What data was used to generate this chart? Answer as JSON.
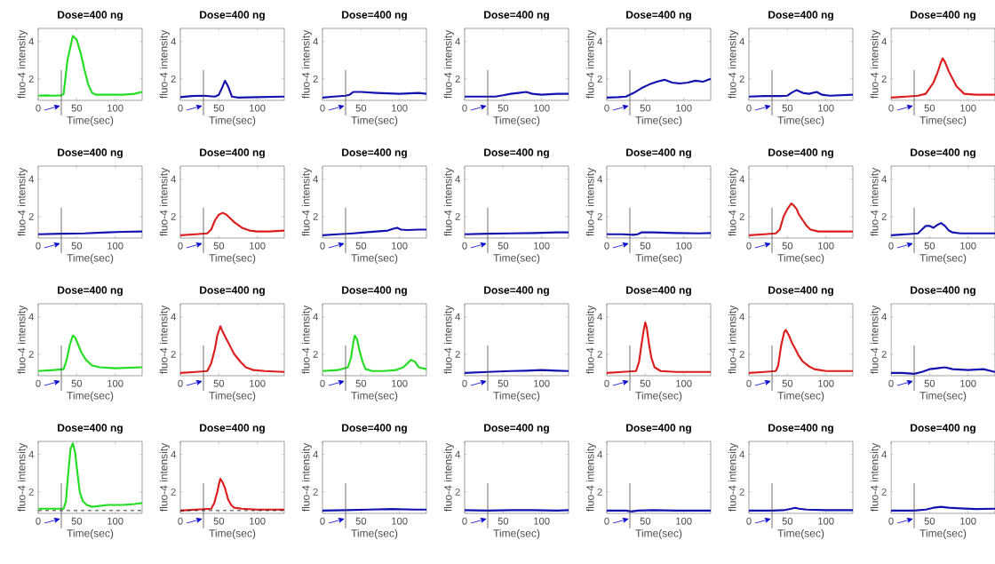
{
  "chart_data": [
    {
      "type": "line",
      "title": "Dose=400 ng",
      "xlabel": "Time(sec)",
      "ylabel": "fluo-4 intensity",
      "xlim": [
        0,
        135
      ],
      "ylim": [
        0.85,
        4.7
      ],
      "xticks": [
        0,
        50,
        100
      ],
      "yticks": [
        2,
        4
      ],
      "ref_lines": [
        {
          "axis": "x",
          "value": 30
        }
      ],
      "x": [
        0,
        10,
        20,
        30,
        33,
        38,
        45,
        50,
        55,
        60,
        65,
        70,
        75,
        90,
        110,
        125,
        135
      ],
      "series": [
        {
          "color": "#22dd22",
          "values": [
            1.1,
            1.12,
            1.1,
            1.12,
            1.2,
            3.0,
            4.3,
            4.1,
            3.4,
            2.5,
            1.7,
            1.25,
            1.15,
            1.15,
            1.15,
            1.2,
            1.3
          ]
        }
      ]
    },
    {
      "type": "line",
      "title": "Dose=400 ng",
      "xlabel": "Time(sec)",
      "ylabel": "fluo-4 intensity",
      "xlim": [
        0,
        135
      ],
      "ylim": [
        0.85,
        4.7
      ],
      "xticks": [
        0,
        50,
        100
      ],
      "yticks": [
        2,
        4
      ],
      "ref_lines": [
        {
          "axis": "x",
          "value": 30
        }
      ],
      "x": [
        0,
        15,
        30,
        45,
        50,
        55,
        58,
        62,
        67,
        75,
        100,
        135
      ],
      "series": [
        {
          "color": "#1212b0",
          "values": [
            1.02,
            1.08,
            1.1,
            1.05,
            1.15,
            1.6,
            1.9,
            1.6,
            1.05,
            1.0,
            1.02,
            1.05
          ]
        }
      ]
    },
    {
      "type": "line",
      "title": "Dose=400 ng",
      "xlabel": "Time(sec)",
      "ylabel": "fluo-4 intensity",
      "xlim": [
        0,
        135
      ],
      "ylim": [
        0.85,
        4.7
      ],
      "xticks": [
        0,
        50,
        100
      ],
      "yticks": [
        2,
        4
      ],
      "ref_lines": [
        {
          "axis": "x",
          "value": 30
        }
      ],
      "x": [
        0,
        15,
        30,
        35,
        40,
        50,
        70,
        100,
        125,
        135
      ],
      "series": [
        {
          "color": "#1212b0",
          "values": [
            1.0,
            1.05,
            1.1,
            1.15,
            1.3,
            1.3,
            1.25,
            1.2,
            1.25,
            1.2
          ]
        }
      ]
    },
    {
      "type": "line",
      "title": "Dose=400 ng",
      "xlabel": "Time(sec)",
      "ylabel": "fluo-4 intensity",
      "xlim": [
        0,
        135
      ],
      "ylim": [
        0.85,
        4.7
      ],
      "xticks": [
        0,
        50,
        100
      ],
      "yticks": [
        2,
        4
      ],
      "ref_lines": [
        {
          "axis": "x",
          "value": 30
        }
      ],
      "x": [
        0,
        20,
        40,
        50,
        60,
        70,
        80,
        88,
        100,
        120,
        135
      ],
      "series": [
        {
          "color": "#1212b0",
          "values": [
            1.05,
            1.05,
            1.05,
            1.12,
            1.2,
            1.25,
            1.3,
            1.2,
            1.15,
            1.2,
            1.2
          ]
        }
      ]
    },
    {
      "type": "line",
      "title": "Dose=400 ng",
      "xlabel": "Time(sec)",
      "ylabel": "fluo-4 intensity",
      "xlim": [
        0,
        135
      ],
      "ylim": [
        0.85,
        4.7
      ],
      "xticks": [
        0,
        50,
        100
      ],
      "yticks": [
        2,
        4
      ],
      "ref_lines": [
        {
          "axis": "x",
          "value": 30
        }
      ],
      "x": [
        0,
        15,
        25,
        35,
        45,
        55,
        65,
        75,
        85,
        95,
        105,
        115,
        125,
        135
      ],
      "series": [
        {
          "color": "#1212b0",
          "values": [
            1.0,
            1.02,
            1.05,
            1.25,
            1.5,
            1.7,
            1.85,
            1.95,
            1.8,
            1.75,
            1.8,
            1.9,
            1.85,
            2.0
          ]
        }
      ]
    },
    {
      "type": "line",
      "title": "Dose=400 ng",
      "xlabel": "Time(sec)",
      "ylabel": "fluo-4 intensity",
      "xlim": [
        0,
        135
      ],
      "ylim": [
        0.85,
        4.7
      ],
      "xticks": [
        0,
        50,
        100
      ],
      "yticks": [
        2,
        4
      ],
      "ref_lines": [
        {
          "axis": "x",
          "value": 30
        }
      ],
      "x": [
        0,
        20,
        40,
        50,
        55,
        62,
        70,
        78,
        88,
        95,
        105,
        135
      ],
      "series": [
        {
          "color": "#1212b0",
          "values": [
            1.05,
            1.08,
            1.08,
            1.1,
            1.25,
            1.4,
            1.25,
            1.2,
            1.3,
            1.15,
            1.1,
            1.15
          ]
        }
      ]
    },
    {
      "type": "line",
      "title": "Dose=400 ng",
      "xlabel": "Time(sec)",
      "ylabel": "fluo-4 intensity",
      "xlim": [
        0,
        135
      ],
      "ylim": [
        0.85,
        4.7
      ],
      "xticks": [
        0,
        50,
        100
      ],
      "yticks": [
        2,
        4
      ],
      "ref_lines": [
        {
          "axis": "x",
          "value": 30
        }
      ],
      "x": [
        0,
        20,
        35,
        45,
        50,
        55,
        60,
        64,
        67,
        70,
        75,
        80,
        85,
        95,
        110,
        135
      ],
      "series": [
        {
          "color": "#dd1c1c",
          "values": [
            1.0,
            1.05,
            1.1,
            1.2,
            1.5,
            1.8,
            2.3,
            2.8,
            3.1,
            2.9,
            2.4,
            2.0,
            1.6,
            1.2,
            1.15,
            1.15
          ]
        }
      ]
    },
    {
      "type": "line",
      "title": "Dose=400 ng",
      "xlabel": "Time(sec)",
      "ylabel": "fluo-4 intensity",
      "xlim": [
        0,
        135
      ],
      "ylim": [
        0.85,
        4.7
      ],
      "xticks": [
        0,
        50,
        100
      ],
      "yticks": [
        2,
        4
      ],
      "ref_lines": [
        {
          "axis": "x",
          "value": 30
        }
      ],
      "x": [
        0,
        30,
        60,
        90,
        110,
        135
      ],
      "series": [
        {
          "color": "#1212b0",
          "values": [
            1.05,
            1.08,
            1.1,
            1.15,
            1.18,
            1.2
          ]
        }
      ]
    },
    {
      "type": "line",
      "title": "Dose=400 ng",
      "xlabel": "Time(sec)",
      "ylabel": "fluo-4 intensity",
      "xlim": [
        0,
        135
      ],
      "ylim": [
        0.85,
        4.7
      ],
      "xticks": [
        0,
        50,
        100
      ],
      "yticks": [
        2,
        4
      ],
      "ref_lines": [
        {
          "axis": "x",
          "value": 30
        }
      ],
      "x": [
        0,
        20,
        35,
        40,
        45,
        50,
        55,
        60,
        65,
        70,
        80,
        90,
        100,
        115,
        135
      ],
      "series": [
        {
          "color": "#dd1c1c",
          "values": [
            1.0,
            1.05,
            1.1,
            1.3,
            1.8,
            2.1,
            2.2,
            2.1,
            1.9,
            1.7,
            1.4,
            1.25,
            1.2,
            1.2,
            1.25
          ]
        }
      ]
    },
    {
      "type": "line",
      "title": "Dose=400 ng",
      "xlabel": "Time(sec)",
      "ylabel": "fluo-4 intensity",
      "xlim": [
        0,
        135
      ],
      "ylim": [
        0.85,
        4.7
      ],
      "xticks": [
        0,
        50,
        100
      ],
      "yticks": [
        2,
        4
      ],
      "ref_lines": [
        {
          "axis": "x",
          "value": 30
        }
      ],
      "x": [
        0,
        20,
        40,
        55,
        70,
        85,
        92,
        97,
        102,
        110,
        125,
        135
      ],
      "series": [
        {
          "color": "#1212b0",
          "values": [
            1.0,
            1.05,
            1.1,
            1.15,
            1.2,
            1.25,
            1.35,
            1.4,
            1.3,
            1.28,
            1.3,
            1.3
          ]
        }
      ]
    },
    {
      "type": "line",
      "title": "Dose=400 ng",
      "xlabel": "Time(sec)",
      "ylabel": "fluo-4 intensity",
      "xlim": [
        0,
        135
      ],
      "ylim": [
        0.85,
        4.7
      ],
      "xticks": [
        0,
        50,
        100
      ],
      "yticks": [
        2,
        4
      ],
      "ref_lines": [
        {
          "axis": "x",
          "value": 30
        }
      ],
      "x": [
        0,
        30,
        60,
        90,
        120,
        135
      ],
      "series": [
        {
          "color": "#1212b0",
          "values": [
            1.05,
            1.08,
            1.1,
            1.12,
            1.15,
            1.15
          ]
        }
      ]
    },
    {
      "type": "line",
      "title": "Dose=400 ng",
      "xlabel": "Time(sec)",
      "ylabel": "fluo-4 intensity",
      "xlim": [
        0,
        135
      ],
      "ylim": [
        0.85,
        4.7
      ],
      "xticks": [
        0,
        50,
        100
      ],
      "yticks": [
        2,
        4
      ],
      "ref_lines": [
        {
          "axis": "x",
          "value": 30
        }
      ],
      "x": [
        0,
        20,
        35,
        40,
        45,
        60,
        90,
        120,
        135
      ],
      "series": [
        {
          "color": "#1212b0",
          "values": [
            1.05,
            1.05,
            1.02,
            1.05,
            1.15,
            1.15,
            1.12,
            1.1,
            1.12
          ]
        }
      ]
    },
    {
      "type": "line",
      "title": "Dose=400 ng",
      "xlabel": "Time(sec)",
      "ylabel": "fluo-4 intensity",
      "xlim": [
        0,
        135
      ],
      "ylim": [
        0.85,
        4.7
      ],
      "xticks": [
        0,
        50,
        100
      ],
      "yticks": [
        2,
        4
      ],
      "ref_lines": [
        {
          "axis": "x",
          "value": 30
        }
      ],
      "x": [
        0,
        20,
        35,
        40,
        45,
        50,
        55,
        58,
        62,
        65,
        70,
        75,
        80,
        90,
        110,
        135
      ],
      "series": [
        {
          "color": "#dd1c1c",
          "values": [
            1.0,
            1.05,
            1.1,
            1.3,
            2.0,
            2.4,
            2.7,
            2.6,
            2.4,
            2.1,
            1.8,
            1.5,
            1.3,
            1.2,
            1.2,
            1.2
          ]
        }
      ]
    },
    {
      "type": "line",
      "title": "Dose=400 ng",
      "xlabel": "Time(sec)",
      "ylabel": "fluo-4 intensity",
      "xlim": [
        0,
        135
      ],
      "ylim": [
        0.85,
        4.7
      ],
      "xticks": [
        0,
        50,
        100
      ],
      "yticks": [
        2,
        4
      ],
      "ref_lines": [
        {
          "axis": "x",
          "value": 30
        }
      ],
      "x": [
        0,
        20,
        35,
        40,
        45,
        50,
        55,
        60,
        65,
        70,
        75,
        80,
        90,
        110,
        135
      ],
      "series": [
        {
          "color": "#1212b0",
          "values": [
            1.0,
            1.05,
            1.1,
            1.3,
            1.5,
            1.5,
            1.4,
            1.55,
            1.65,
            1.5,
            1.25,
            1.15,
            1.1,
            1.1,
            1.1
          ]
        }
      ]
    },
    {
      "type": "line",
      "title": "Dose=400 ng",
      "xlabel": "Time(sec)",
      "ylabel": "fluo-4 intensity",
      "xlim": [
        0,
        135
      ],
      "ylim": [
        0.85,
        4.7
      ],
      "xticks": [
        0,
        50,
        100
      ],
      "yticks": [
        2,
        4
      ],
      "ref_lines": [
        {
          "axis": "x",
          "value": 30
        }
      ],
      "x": [
        0,
        20,
        33,
        37,
        41,
        45,
        48,
        52,
        56,
        62,
        70,
        80,
        100,
        135
      ],
      "series": [
        {
          "color": "#22dd22",
          "values": [
            1.1,
            1.15,
            1.2,
            1.7,
            2.5,
            3.0,
            2.9,
            2.5,
            2.1,
            1.7,
            1.4,
            1.3,
            1.25,
            1.3
          ]
        }
      ]
    },
    {
      "type": "line",
      "title": "Dose=400 ng",
      "xlabel": "Time(sec)",
      "ylabel": "fluo-4 intensity",
      "xlim": [
        0,
        135
      ],
      "ylim": [
        0.85,
        4.7
      ],
      "xticks": [
        0,
        50,
        100
      ],
      "yticks": [
        2,
        4
      ],
      "ref_lines": [
        {
          "axis": "x",
          "value": 30
        }
      ],
      "x": [
        0,
        20,
        35,
        40,
        45,
        48,
        52,
        55,
        60,
        65,
        70,
        78,
        85,
        95,
        110,
        135
      ],
      "series": [
        {
          "color": "#dd1c1c",
          "values": [
            1.0,
            1.05,
            1.1,
            1.5,
            2.3,
            3.0,
            3.5,
            3.2,
            2.8,
            2.4,
            2.0,
            1.6,
            1.3,
            1.15,
            1.1,
            1.05
          ]
        }
      ]
    },
    {
      "type": "line",
      "title": "Dose=400 ng",
      "xlabel": "Time(sec)",
      "ylabel": "fluo-4 intensity",
      "xlim": [
        0,
        135
      ],
      "ylim": [
        0.85,
        4.7
      ],
      "xticks": [
        0,
        50,
        100
      ],
      "yticks": [
        2,
        4
      ],
      "ref_lines": [
        {
          "axis": "x",
          "value": 30
        }
      ],
      "x": [
        0,
        20,
        33,
        37,
        40,
        42,
        45,
        48,
        52,
        56,
        65,
        80,
        95,
        105,
        110,
        115,
        120,
        125,
        135
      ],
      "series": [
        {
          "color": "#22dd22",
          "values": [
            1.1,
            1.15,
            1.3,
            1.8,
            2.6,
            3.0,
            2.8,
            2.2,
            1.6,
            1.2,
            1.1,
            1.1,
            1.15,
            1.3,
            1.5,
            1.7,
            1.6,
            1.3,
            1.2
          ]
        }
      ]
    },
    {
      "type": "line",
      "title": "Dose=400 ng",
      "xlabel": "Time(sec)",
      "ylabel": "fluo-4 intensity",
      "xlim": [
        0,
        135
      ],
      "ylim": [
        0.85,
        4.7
      ],
      "xticks": [
        0,
        50,
        100
      ],
      "yticks": [
        2,
        4
      ],
      "ref_lines": [
        {
          "axis": "x",
          "value": 30
        }
      ],
      "x": [
        0,
        30,
        60,
        80,
        100,
        120,
        135
      ],
      "series": [
        {
          "color": "#1212b0",
          "values": [
            1.0,
            1.05,
            1.1,
            1.12,
            1.15,
            1.12,
            1.1
          ]
        }
      ]
    },
    {
      "type": "line",
      "title": "Dose=400 ng",
      "xlabel": "Time(sec)",
      "ylabel": "fluo-4 intensity",
      "xlim": [
        0,
        135
      ],
      "ylim": [
        0.85,
        4.7
      ],
      "xticks": [
        0,
        50,
        100
      ],
      "yticks": [
        2,
        4
      ],
      "ref_lines": [
        {
          "axis": "x",
          "value": 30
        }
      ],
      "x": [
        0,
        20,
        38,
        42,
        45,
        48,
        50,
        52,
        55,
        58,
        62,
        70,
        90,
        135
      ],
      "series": [
        {
          "color": "#dd1c1c",
          "values": [
            1.0,
            1.05,
            1.1,
            1.6,
            2.5,
            3.3,
            3.7,
            3.4,
            2.5,
            1.8,
            1.3,
            1.1,
            1.05,
            1.05
          ]
        }
      ]
    },
    {
      "type": "line",
      "title": "Dose=400 ng",
      "xlabel": "Time(sec)",
      "ylabel": "fluo-4 intensity",
      "xlim": [
        0,
        135
      ],
      "ylim": [
        0.85,
        4.7
      ],
      "xticks": [
        0,
        50,
        100
      ],
      "yticks": [
        2,
        4
      ],
      "ref_lines": [
        {
          "axis": "x",
          "value": 30
        }
      ],
      "x": [
        0,
        20,
        35,
        38,
        42,
        46,
        48,
        52,
        56,
        60,
        65,
        70,
        78,
        85,
        100,
        135
      ],
      "series": [
        {
          "color": "#dd1c1c",
          "values": [
            1.0,
            1.05,
            1.1,
            1.4,
            2.5,
            3.2,
            3.3,
            3.0,
            2.6,
            2.3,
            1.9,
            1.6,
            1.35,
            1.2,
            1.1,
            1.1
          ]
        }
      ]
    },
    {
      "type": "line",
      "title": "Dose=400 ng",
      "xlabel": "Time(sec)",
      "ylabel": "fluo-4 intensity",
      "xlim": [
        0,
        135
      ],
      "ylim": [
        0.85,
        4.7
      ],
      "xticks": [
        0,
        50,
        100
      ],
      "yticks": [
        2,
        4
      ],
      "ref_lines": [
        {
          "axis": "x",
          "value": 30
        }
      ],
      "x": [
        0,
        15,
        30,
        40,
        50,
        60,
        70,
        80,
        100,
        120,
        130,
        135
      ],
      "series": [
        {
          "color": "#1212b0",
          "values": [
            1.0,
            1.0,
            0.95,
            1.05,
            1.2,
            1.25,
            1.3,
            1.2,
            1.15,
            1.2,
            1.1,
            1.05
          ]
        }
      ]
    },
    {
      "type": "line",
      "title": "Dose=400 ng",
      "xlabel": "Time(sec)",
      "ylabel": "fluo-4 intensity",
      "xlim": [
        0,
        135
      ],
      "ylim": [
        0.85,
        4.7
      ],
      "xticks": [
        0,
        50,
        100
      ],
      "yticks": [
        2,
        4
      ],
      "ref_lines": [
        {
          "axis": "x",
          "value": 30
        },
        {
          "axis": "y",
          "value": 1,
          "line_style": "dashed"
        }
      ],
      "x": [
        0,
        20,
        33,
        36,
        39,
        42,
        45,
        48,
        51,
        54,
        58,
        63,
        70,
        90,
        110,
        125,
        135
      ],
      "series": [
        {
          "color": "#22dd22",
          "values": [
            1.1,
            1.1,
            1.1,
            1.5,
            3.0,
            4.3,
            4.6,
            4.1,
            3.0,
            2.0,
            1.5,
            1.3,
            1.2,
            1.3,
            1.3,
            1.35,
            1.4
          ]
        }
      ]
    },
    {
      "type": "line",
      "title": "Dose=400 ng",
      "xlabel": "Time(sec)",
      "ylabel": "fluo-4 intensity",
      "xlim": [
        0,
        135
      ],
      "ylim": [
        0.85,
        4.7
      ],
      "xticks": [
        0,
        50,
        100
      ],
      "yticks": [
        2,
        4
      ],
      "ref_lines": [
        {
          "axis": "x",
          "value": 30
        },
        {
          "axis": "y",
          "value": 1,
          "line_style": "dashed"
        }
      ],
      "x": [
        0,
        20,
        40,
        44,
        48,
        50,
        52,
        55,
        58,
        62,
        66,
        70,
        80,
        100,
        135
      ],
      "series": [
        {
          "color": "#dd1c1c",
          "values": [
            1.0,
            1.05,
            1.1,
            1.4,
            2.0,
            2.4,
            2.7,
            2.5,
            2.2,
            1.6,
            1.3,
            1.15,
            1.1,
            1.05,
            1.05
          ]
        }
      ]
    },
    {
      "type": "line",
      "title": "Dose=400 ng",
      "xlabel": "Time(sec)",
      "ylabel": "fluo-4 intensity",
      "xlim": [
        0,
        135
      ],
      "ylim": [
        0.85,
        4.7
      ],
      "xticks": [
        0,
        50,
        100
      ],
      "yticks": [
        2,
        4
      ],
      "ref_lines": [
        {
          "axis": "x",
          "value": 30
        }
      ],
      "x": [
        0,
        30,
        60,
        90,
        120,
        135
      ],
      "series": [
        {
          "color": "#1212b0",
          "values": [
            1.0,
            1.02,
            1.05,
            1.08,
            1.05,
            1.05
          ]
        }
      ]
    },
    {
      "type": "line",
      "title": "Dose=400 ng",
      "xlabel": "Time(sec)",
      "ylabel": "fluo-4 intensity",
      "xlim": [
        0,
        135
      ],
      "ylim": [
        0.85,
        4.7
      ],
      "xticks": [
        0,
        50,
        100
      ],
      "yticks": [
        2,
        4
      ],
      "ref_lines": [
        {
          "axis": "x",
          "value": 30
        }
      ],
      "x": [
        0,
        30,
        60,
        90,
        120,
        135
      ],
      "series": [
        {
          "color": "#1212b0",
          "values": [
            1.02,
            1.0,
            1.02,
            1.02,
            1.0,
            1.02
          ]
        }
      ]
    },
    {
      "type": "line",
      "title": "Dose=400 ng",
      "xlabel": "Time(sec)",
      "ylabel": "fluo-4 intensity",
      "xlim": [
        0,
        135
      ],
      "ylim": [
        0.85,
        4.7
      ],
      "xticks": [
        0,
        50,
        100
      ],
      "yticks": [
        2,
        4
      ],
      "ref_lines": [
        {
          "axis": "x",
          "value": 30
        }
      ],
      "x": [
        0,
        25,
        32,
        40,
        60,
        90,
        120,
        135
      ],
      "series": [
        {
          "color": "#1212b0",
          "values": [
            1.0,
            1.0,
            0.95,
            1.0,
            1.02,
            1.0,
            1.0,
            1.0
          ]
        }
      ]
    },
    {
      "type": "line",
      "title": "Dose=400 ng",
      "xlabel": "Time(sec)",
      "ylabel": "fluo-4 intensity",
      "xlim": [
        0,
        135
      ],
      "ylim": [
        0.85,
        4.7
      ],
      "xticks": [
        0,
        50,
        100
      ],
      "yticks": [
        2,
        4
      ],
      "ref_lines": [
        {
          "axis": "x",
          "value": 30
        }
      ],
      "x": [
        0,
        30,
        45,
        55,
        60,
        65,
        75,
        100,
        135
      ],
      "series": [
        {
          "color": "#1212b0",
          "values": [
            1.0,
            1.0,
            1.02,
            1.1,
            1.15,
            1.1,
            1.05,
            1.02,
            1.02
          ]
        }
      ]
    },
    {
      "type": "line",
      "title": "Dose=400 ng",
      "xlabel": "Time(sec)",
      "ylabel": "fluo-4 intensity",
      "xlim": [
        0,
        135
      ],
      "ylim": [
        0.85,
        4.7
      ],
      "xticks": [
        0,
        50,
        100
      ],
      "yticks": [
        2,
        4
      ],
      "ref_lines": [
        {
          "axis": "x",
          "value": 30
        }
      ],
      "x": [
        0,
        30,
        45,
        55,
        65,
        75,
        90,
        110,
        135
      ],
      "series": [
        {
          "color": "#1212b0",
          "values": [
            1.0,
            1.0,
            1.05,
            1.15,
            1.2,
            1.15,
            1.12,
            1.08,
            1.1
          ]
        }
      ]
    }
  ]
}
